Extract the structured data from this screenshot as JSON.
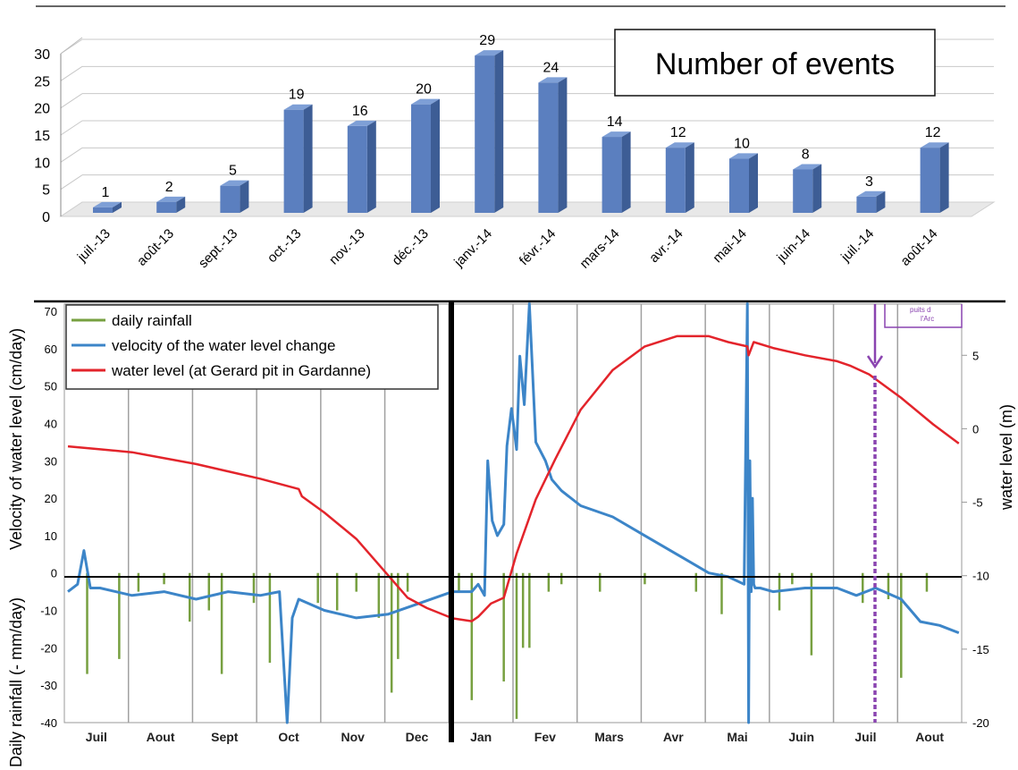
{
  "chart_data": [
    {
      "type": "bar",
      "title": "Number of events",
      "categories": [
        "juil.-13",
        "août-13",
        "sept.-13",
        "oct.-13",
        "nov.-13",
        "déc.-13",
        "janv.-14",
        "févr.-14",
        "mars-14",
        "avr.-14",
        "mai-14",
        "juin-14",
        "juil.-14",
        "août-14"
      ],
      "values": [
        1,
        2,
        5,
        19,
        16,
        20,
        29,
        24,
        14,
        12,
        10,
        8,
        3,
        12
      ],
      "ylim": [
        0,
        30
      ],
      "yticks": [
        "0",
        "5",
        "10",
        "15",
        "20",
        "25",
        "30"
      ],
      "grid": true,
      "bar_color": "#5b7fbf"
    },
    {
      "type": "line",
      "ylabel_left_top": "Velocity of water level  (cm/day)",
      "ylabel_left_bottom": "Daily rainfall (- mm/day)",
      "ylabel_right": "water level  (m)",
      "ylim_left": [
        -40,
        70
      ],
      "ylim_right": [
        -20,
        8
      ],
      "yticks_left": [
        "-40",
        "-30",
        "-20",
        "-10",
        "0",
        "10",
        "20",
        "30",
        "40",
        "50",
        "60",
        "70"
      ],
      "yticks_right": [
        "-20",
        "-15",
        "-10",
        "-5",
        "0",
        "5"
      ],
      "x_months": [
        "Juil",
        "Aout",
        "Sept",
        "Oct",
        "Nov",
        "Dec",
        "Jan",
        "Fev",
        "Mars",
        "Avr",
        "Mai",
        "Juin",
        "Juil",
        "Aout"
      ],
      "legend": [
        {
          "label": "daily rainfall",
          "color": "#77a040"
        },
        {
          "label": "velocity of the water level change",
          "color": "#3c85c8"
        },
        {
          "label": "water level (at Gerard pit in Gardanne)",
          "color": "#e3242b"
        }
      ],
      "legend_position": "top-left",
      "annotation": [
        "puits d",
        "l'Arc"
      ],
      "annotation_color": "#8a44b0",
      "water_level": {
        "x": [
          0,
          0.5,
          1,
          2,
          3,
          3.6,
          3.65,
          4,
          4.5,
          5,
          5.3,
          5.6,
          6,
          6.3,
          6.4,
          6.6,
          6.8,
          7,
          7.3,
          7.6,
          8,
          8.5,
          9,
          9.5,
          10,
          10.3,
          10.6,
          10.62,
          10.7,
          11,
          11.5,
          12,
          12.2,
          12.5,
          13,
          13.5,
          13.9
        ],
        "y": [
          -1.2,
          -1.4,
          -1.6,
          -2.4,
          -3.4,
          -4.1,
          -4.6,
          -5.7,
          -7.5,
          -10,
          -11.5,
          -12.2,
          -12.9,
          -13.1,
          -12.8,
          -11.9,
          -11.5,
          -8.5,
          -4.8,
          -2.1,
          1.3,
          4,
          5.6,
          6.3,
          6.3,
          5.9,
          5.6,
          5.0,
          5.9,
          5.5,
          5.0,
          4.6,
          4.3,
          3.7,
          2.1,
          0.3,
          -1.0
        ]
      },
      "velocity": {
        "x": [
          0,
          0.15,
          0.25,
          0.35,
          0.5,
          1,
          1.5,
          2,
          2.5,
          3,
          3.3,
          3.42,
          3.5,
          3.6,
          4,
          4.5,
          5,
          5.5,
          6,
          6.3,
          6.4,
          6.5,
          6.55,
          6.62,
          6.7,
          6.8,
          6.85,
          6.92,
          7,
          7.05,
          7.12,
          7.2,
          7.3,
          7.45,
          7.55,
          7.7,
          8,
          8.5,
          9,
          9.5,
          10,
          10.3,
          10.55,
          10.6,
          10.62,
          10.64,
          10.66,
          10.68,
          10.7,
          10.72,
          10.8,
          11,
          11.5,
          12,
          12.3,
          12.6,
          13,
          13.3,
          13.6,
          13.9
        ],
        "y": [
          -5,
          -3,
          6,
          -4,
          -4,
          -6,
          -5,
          -7,
          -5,
          -6,
          -5,
          -40,
          -12,
          -7,
          -10,
          -12,
          -11,
          -8,
          -5,
          -5,
          -3,
          -6,
          30,
          14,
          10,
          13,
          34,
          44,
          33,
          58,
          45,
          72,
          35,
          30,
          25,
          22,
          18,
          15,
          10,
          5,
          0,
          -1,
          -3,
          72,
          -40,
          30,
          -5,
          20,
          -3,
          -4,
          -4,
          -5,
          -4,
          -4,
          -6,
          -4,
          -7,
          -13,
          -14,
          -16
        ]
      },
      "rainfall": {
        "x": [
          0.3,
          0.8,
          1.1,
          1.5,
          1.9,
          2.2,
          2.4,
          2.9,
          3.15,
          3.9,
          4.2,
          4.5,
          4.85,
          5.05,
          5.15,
          5.3,
          6.1,
          6.3,
          6.8,
          7.0,
          7.1,
          7.2,
          7.5,
          7.7,
          8.3,
          9.0,
          9.8,
          10.2,
          11.1,
          11.3,
          11.6,
          12.4,
          12.8,
          13.0,
          13.4
        ],
        "y": [
          -27,
          -23,
          -5,
          -3,
          -13,
          -10,
          -27,
          -8,
          -24,
          -8,
          -10,
          -5,
          -12,
          -32,
          -23,
          -5,
          -5,
          -34,
          -29,
          -39,
          -20,
          -20,
          -5,
          -3,
          -5,
          -3,
          -5,
          -11,
          -10,
          -3,
          -22,
          -8,
          -7,
          -28,
          -5
        ]
      }
    }
  ]
}
